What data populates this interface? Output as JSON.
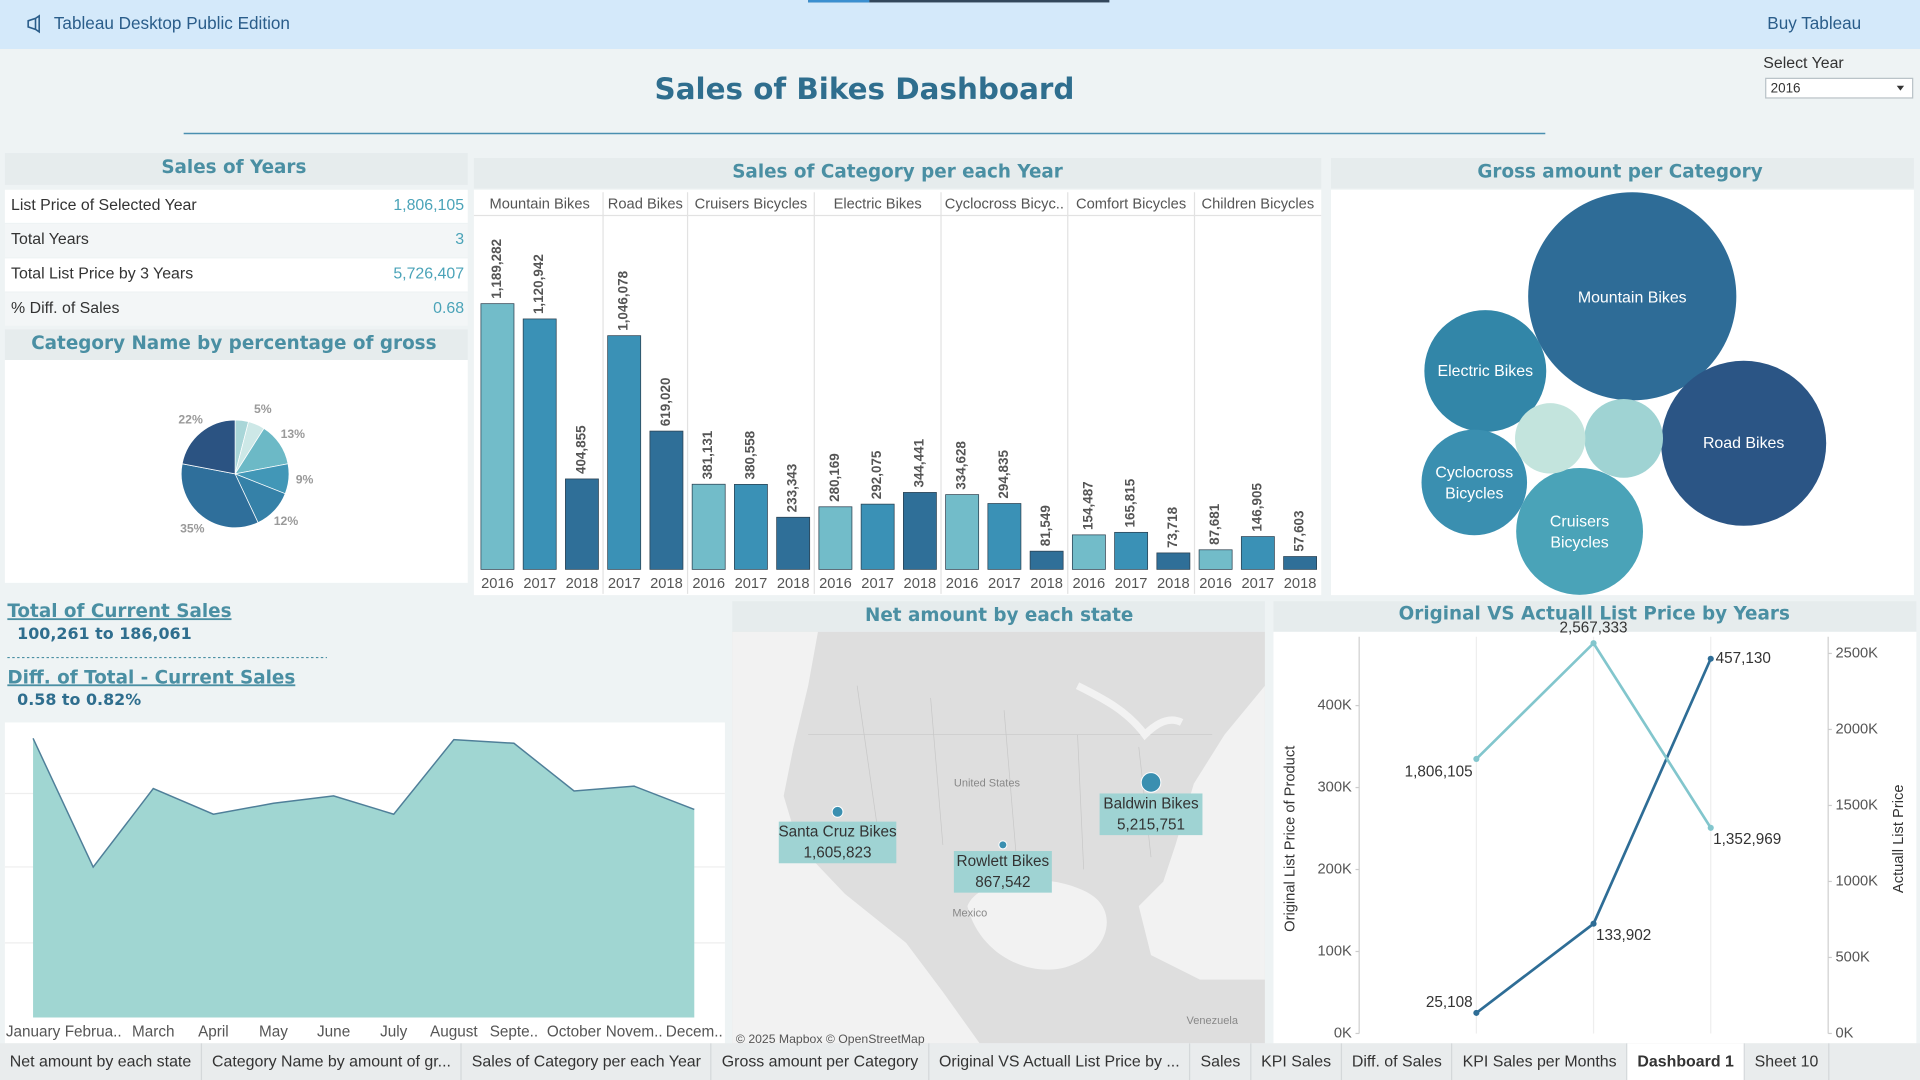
{
  "app": {
    "title": "Tableau Desktop Public Edition",
    "action": "Buy Tableau"
  },
  "dashboard": {
    "title": "Sales of Bikes Dashboard",
    "filter": {
      "label": "Select Year",
      "value": "2016"
    }
  },
  "kpi": {
    "title": "Sales of Years",
    "rows": [
      [
        "List Price of Selected Year",
        "1,806,105"
      ],
      [
        "Total Years",
        "3"
      ],
      [
        "Total List Price by 3 Years",
        "5,726,407"
      ],
      [
        "% Diff. of Sales",
        "0.68"
      ]
    ]
  },
  "summary": [
    {
      "title": "Total of Current Sales",
      "range": "100,261 to 186,061"
    },
    {
      "title": "Diff. of Total - Current Sales",
      "range": "0.58 to 0.82%"
    }
  ],
  "chart_data": [
    {
      "type": "pie",
      "title": "Category Name by percentage of gross",
      "values": [
        4,
        5,
        13,
        9,
        12,
        35,
        22
      ],
      "value_labels": [
        null,
        "5%",
        "13%",
        "9%",
        "12%",
        "35%",
        "22%"
      ],
      "colors": [
        "#a9d6d8",
        "#cde8e7",
        "#6cb9c6",
        "#4297b7",
        "#3581a8",
        "#2f6f9b",
        "#2b5382"
      ]
    },
    {
      "type": "bar",
      "title": "Sales of Category per each Year",
      "categories": [
        "Mountain Bikes",
        "Road Bikes",
        "Cruisers Bicycles",
        "Electric Bikes",
        "Cyclocross Bicyc..",
        "Comfort Bicycles",
        "Children Bicycles"
      ],
      "series": [
        {
          "name": "2016",
          "color": "#72bcc9",
          "values": [
            1189282,
            null,
            381131,
            280169,
            334628,
            154487,
            87681
          ],
          "value_labels": [
            "1,189,282",
            null,
            "381,131",
            "280,169",
            "334,628",
            "154,487",
            "87,681"
          ]
        },
        {
          "name": "2017",
          "color": "#3a91b6",
          "values": [
            1120942,
            1046078,
            380558,
            292075,
            294835,
            165815,
            146905
          ],
          "value_labels": [
            "1,120,942",
            "1,046,078",
            "380,558",
            "292,075",
            "294,835",
            "165,815",
            "146,905"
          ]
        },
        {
          "name": "2018",
          "color": "#2f6f98",
          "values": [
            404855,
            619020,
            233343,
            344441,
            81549,
            73718,
            57603
          ],
          "value_labels": [
            "404,855",
            "619,020",
            "233,343",
            "344,441",
            "81,549",
            "73,718",
            "57,603"
          ]
        }
      ]
    },
    {
      "type": "bubble",
      "title": "Gross amount per Category",
      "categories": [
        "Mountain Bikes",
        "Road Bikes",
        "Cruisers Bicycles",
        "Electric Bikes",
        "Cyclocross Bicycles",
        null,
        null
      ],
      "values": [
        35,
        22,
        13,
        12,
        9,
        5,
        4
      ],
      "colors": [
        "#2e6c97",
        "#2b5585",
        "#4aa3b8",
        "#3286a8",
        "#3a8fb0",
        "#9fd3d3",
        "#c3e4dd"
      ]
    },
    {
      "type": "area",
      "categories": [
        "January",
        "Februa..",
        "March",
        "April",
        "May",
        "June",
        "July",
        "August",
        "Septe..",
        "October",
        "Novem..",
        "Decem.."
      ],
      "values": [
        186061,
        100261,
        152600,
        135500,
        142800,
        147700,
        135500,
        185200,
        182800,
        151000,
        154200,
        138700
      ],
      "color": "#a0d6d2"
    },
    {
      "type": "map",
      "title": "Net amount by each state",
      "categories": [
        "Santa Cruz Bikes",
        "Rowlett Bikes",
        "Baldwin Bikes"
      ],
      "values": [
        1605823,
        867542,
        5215751
      ],
      "value_labels": [
        "1,605,823",
        "867,542",
        "5,215,751"
      ],
      "color": "#3a8fb0",
      "place_labels": [
        "United States",
        "Mexico",
        "Venezuela"
      ],
      "attribution": "© 2025 Mapbox © OpenStreetMap"
    },
    {
      "type": "line",
      "title": "Original VS Actuall List Price by Years",
      "ylabel": "Original List Price of Product",
      "y2label": "Actuall List Price",
      "ylim": [
        0,
        484000
      ],
      "yticks": [
        {
          "value": 0,
          "label": "0K"
        },
        {
          "value": 100000,
          "label": "100K"
        },
        {
          "value": 200000,
          "label": "200K"
        },
        {
          "value": 300000,
          "label": "300K"
        },
        {
          "value": 400000,
          "label": "400K"
        }
      ],
      "y2lim": [
        0,
        2610000
      ],
      "y2ticks": [
        {
          "value": 0,
          "label": "0K"
        },
        {
          "value": 500000,
          "label": "500K"
        },
        {
          "value": 1000000,
          "label": "1000K"
        },
        {
          "value": 1500000,
          "label": "1500K"
        },
        {
          "value": 2000000,
          "label": "2000K"
        },
        {
          "value": 2500000,
          "label": "2500K"
        }
      ],
      "series": [
        {
          "color": "#2e6d96",
          "values": [
            25108,
            133902,
            457130
          ],
          "value_labels": [
            "25,108",
            "133,902",
            "457,130"
          ]
        },
        {
          "color": "#82c6cd",
          "axis": "y2",
          "values": [
            1806105,
            2567333,
            1352969
          ],
          "value_labels": [
            "1,806,105",
            "2,567,333",
            "1,352,969"
          ]
        }
      ]
    }
  ],
  "tabs": {
    "items": [
      "Net amount by each state",
      "Category Name by amount of gr...",
      "Sales of Category per each Year",
      "Gross amount per Category",
      "Original VS Actuall List Price by ...",
      "Sales",
      "KPI Sales",
      "Diff. of Sales",
      "KPI Sales per Months",
      "Dashboard 1",
      "Sheet 10"
    ],
    "active": 9
  }
}
